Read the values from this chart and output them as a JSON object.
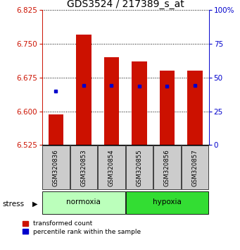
{
  "title": "GDS3524 / 217389_s_at",
  "samples": [
    "GSM320836",
    "GSM320853",
    "GSM320854",
    "GSM320855",
    "GSM320856",
    "GSM320857"
  ],
  "bar_bottom": 6.525,
  "bar_tops": [
    6.593,
    6.77,
    6.72,
    6.71,
    6.69,
    6.69
  ],
  "blue_values": [
    6.645,
    6.658,
    6.658,
    6.655,
    6.656,
    6.657
  ],
  "ylim": [
    6.525,
    6.825
  ],
  "yticks": [
    6.525,
    6.6,
    6.675,
    6.75,
    6.825
  ],
  "right_yticks": [
    0,
    25,
    50,
    75,
    100
  ],
  "right_ylim": [
    0,
    100
  ],
  "bar_color": "#cc1100",
  "blue_color": "#0000cc",
  "normoxia_color": "#bbffbb",
  "hypoxia_color": "#33dd33",
  "group_bg_color": "#cccccc",
  "stress_label": "stress",
  "normoxia_label": "normoxia",
  "hypoxia_label": "hypoxia",
  "legend_red_label": "transformed count",
  "legend_blue_label": "percentile rank within the sample",
  "bar_width": 0.55,
  "title_fontsize": 10,
  "tick_fontsize": 7.5,
  "label_fontsize": 7
}
